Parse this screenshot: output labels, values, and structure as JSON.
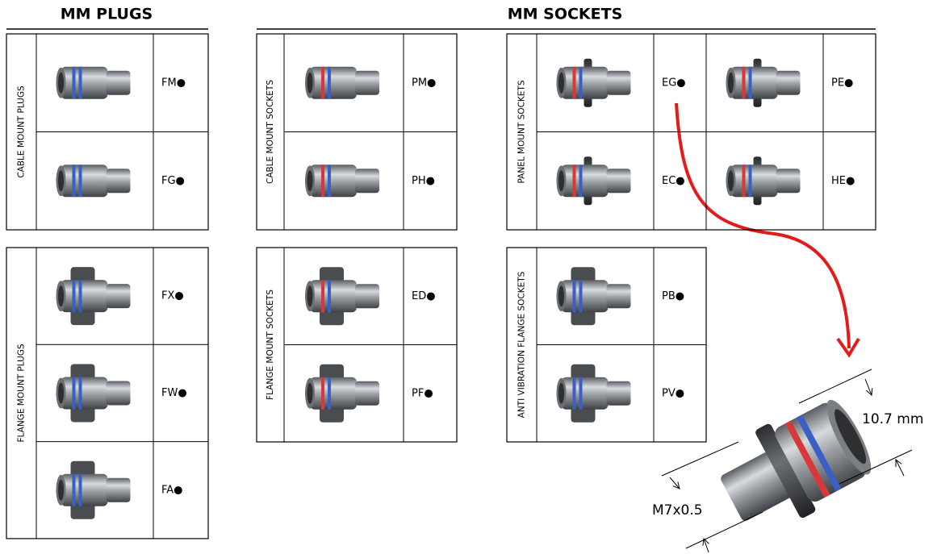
{
  "headers": {
    "plugs": "MM PLUGS",
    "sockets": "MM SOCKETS"
  },
  "groups": [
    {
      "label": "CABLE MOUNT PLUGS",
      "codes": [
        "FM●",
        "FG●"
      ]
    },
    {
      "label": "FLANGE MOUNT PLUGS",
      "codes": [
        "FX●",
        "FW●",
        "FA●"
      ]
    },
    {
      "label": "CABLE MOUNT SOCKETS",
      "codes": [
        "PM●",
        "PH●"
      ]
    },
    {
      "label": "FLANGE MOUNT SOCKETS",
      "codes": [
        "ED●",
        "PF●"
      ]
    },
    {
      "label": "PANEL MOUNT SOCKETS",
      "codes": [
        "EG●",
        "PE●",
        "EC●",
        "HE●"
      ]
    },
    {
      "label": "ANTI VIBRATION FLANGE SOCKETS",
      "codes": [
        "PB●",
        "PV●"
      ]
    }
  ],
  "dimensions": {
    "diameter": "10.7 mm",
    "thread": "M7x0.5"
  }
}
